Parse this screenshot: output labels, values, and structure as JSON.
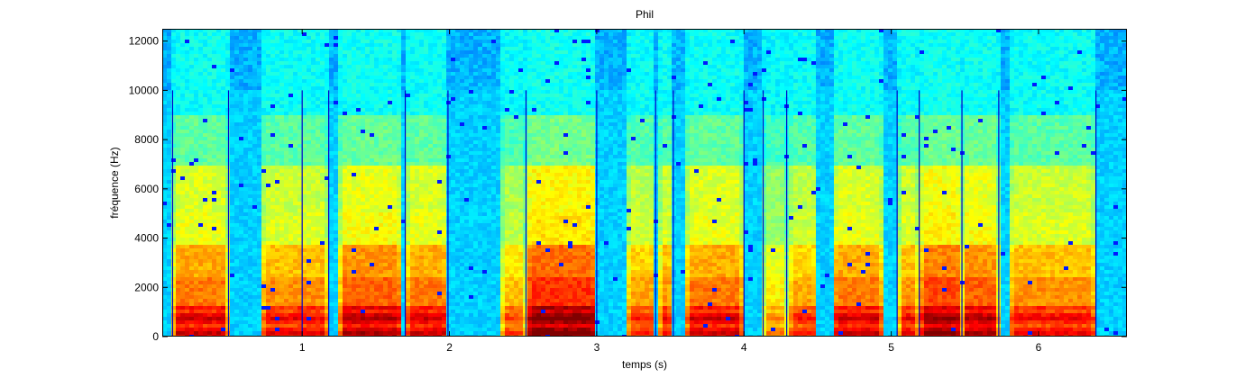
{
  "chart_data": {
    "type": "heatmap",
    "subtype": "spectrogram",
    "title": "Phil",
    "xlabel": "temps (s)",
    "ylabel": "fréquence (Hz)",
    "xlim": [
      0.05,
      6.6
    ],
    "ylim": [
      0,
      12500
    ],
    "xticks": [
      1,
      2,
      3,
      4,
      5,
      6
    ],
    "yticks": [
      0,
      2000,
      4000,
      6000,
      8000,
      10000,
      12000
    ],
    "grid": false,
    "legend": "none",
    "colormap": "jet",
    "segment_markers": {
      "color": "#0000cc",
      "y_top": 10000,
      "x": [
        0.12,
        0.5,
        1.0,
        1.18,
        1.7,
        1.99,
        2.52,
        3.0,
        3.4,
        3.52,
        4.0,
        4.13,
        4.29,
        5.04,
        5.19,
        5.48,
        5.73,
        6.39
      ]
    },
    "voiced_segments": [
      {
        "start": 0.12,
        "end": 0.5,
        "intensity": 0.85
      },
      {
        "start": 0.72,
        "end": 1.18,
        "intensity": 0.8
      },
      {
        "start": 1.25,
        "end": 1.68,
        "intensity": 0.9
      },
      {
        "start": 1.7,
        "end": 1.99,
        "intensity": 0.85
      },
      {
        "start": 2.35,
        "end": 2.52,
        "intensity": 0.7
      },
      {
        "start": 2.52,
        "end": 3.0,
        "intensity": 1.0
      },
      {
        "start": 3.2,
        "end": 3.4,
        "intensity": 0.75
      },
      {
        "start": 3.42,
        "end": 3.52,
        "intensity": 0.8
      },
      {
        "start": 3.6,
        "end": 4.0,
        "intensity": 0.85
      },
      {
        "start": 4.13,
        "end": 4.29,
        "intensity": 0.6
      },
      {
        "start": 4.3,
        "end": 4.5,
        "intensity": 0.75
      },
      {
        "start": 4.6,
        "end": 4.95,
        "intensity": 0.85
      },
      {
        "start": 5.05,
        "end": 5.19,
        "intensity": 0.8
      },
      {
        "start": 5.19,
        "end": 5.48,
        "intensity": 0.95
      },
      {
        "start": 5.48,
        "end": 5.73,
        "intensity": 0.9
      },
      {
        "start": 5.8,
        "end": 6.39,
        "intensity": 0.8
      }
    ],
    "colors": {
      "axis": "#000000",
      "marker": "#0000cc"
    }
  }
}
